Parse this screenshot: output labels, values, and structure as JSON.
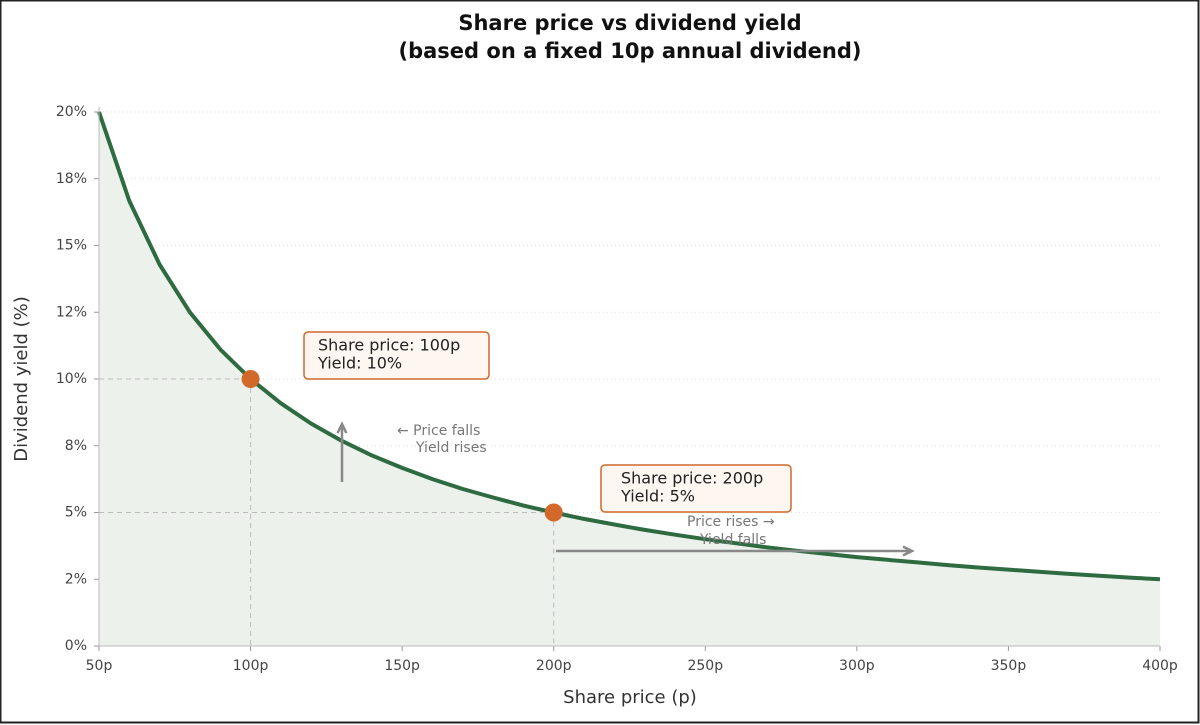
{
  "chart_data": {
    "type": "line",
    "title": "Share price vs dividend yield",
    "subtitle": "(based on a fixed 10p annual dividend)",
    "x_label": "Share price (p)",
    "y_label": "Dividend yield (%)",
    "x": [
      50,
      60,
      70,
      80,
      90,
      100,
      110,
      120,
      130,
      140,
      150,
      160,
      170,
      180,
      190,
      200,
      210,
      220,
      230,
      240,
      250,
      260,
      270,
      280,
      290,
      300,
      310,
      320,
      330,
      340,
      350,
      360,
      370,
      380,
      390,
      400
    ],
    "series": [
      {
        "color": "#2f6b40",
        "fill": "#ecf1ec",
        "values": [
          20,
          16.67,
          14.29,
          12.5,
          11.11,
          10,
          9.09,
          8.33,
          7.69,
          7.14,
          6.67,
          6.25,
          5.88,
          5.56,
          5.26,
          5,
          4.76,
          4.55,
          4.35,
          4.17,
          4,
          3.85,
          3.7,
          3.57,
          3.45,
          3.33,
          3.23,
          3.13,
          3.03,
          2.94,
          2.86,
          2.78,
          2.7,
          2.63,
          2.56,
          2.5
        ]
      }
    ],
    "highlights": [
      {
        "x": 100,
        "y": 10,
        "color": "#d2692a",
        "label": [
          "Share price: 100p",
          "Yield: 10%"
        ]
      },
      {
        "x": 200,
        "y": 5,
        "color": "#d2692a",
        "label": [
          "Share price: 200p",
          "Yield: 5%"
        ]
      }
    ],
    "notes": [
      [
        "← Price falls",
        "Yield rises"
      ],
      [
        "Price rises →",
        "Yield falls"
      ]
    ],
    "xlim": [
      50,
      400
    ],
    "ylim": [
      0,
      20
    ],
    "xticks": [
      {
        "value": 50,
        "label": "50p"
      },
      {
        "value": 100,
        "label": "100p"
      },
      {
        "value": 150,
        "label": "150p"
      },
      {
        "value": 200,
        "label": "200p"
      },
      {
        "value": 250,
        "label": "250p"
      },
      {
        "value": 300,
        "label": "300p"
      },
      {
        "value": 350,
        "label": "350p"
      },
      {
        "value": 400,
        "label": "400p"
      }
    ],
    "yticks": [
      {
        "value": 0,
        "label": "0%"
      },
      {
        "value": 2.5,
        "label": "2%"
      },
      {
        "value": 5,
        "label": "5%"
      },
      {
        "value": 7.5,
        "label": "8%"
      },
      {
        "value": 10,
        "label": "10%"
      },
      {
        "value": 12.5,
        "label": "12%"
      },
      {
        "value": 15,
        "label": "15%"
      },
      {
        "value": 17.5,
        "label": "18%"
      },
      {
        "value": 20,
        "label": "20%"
      }
    ],
    "grid": true
  }
}
